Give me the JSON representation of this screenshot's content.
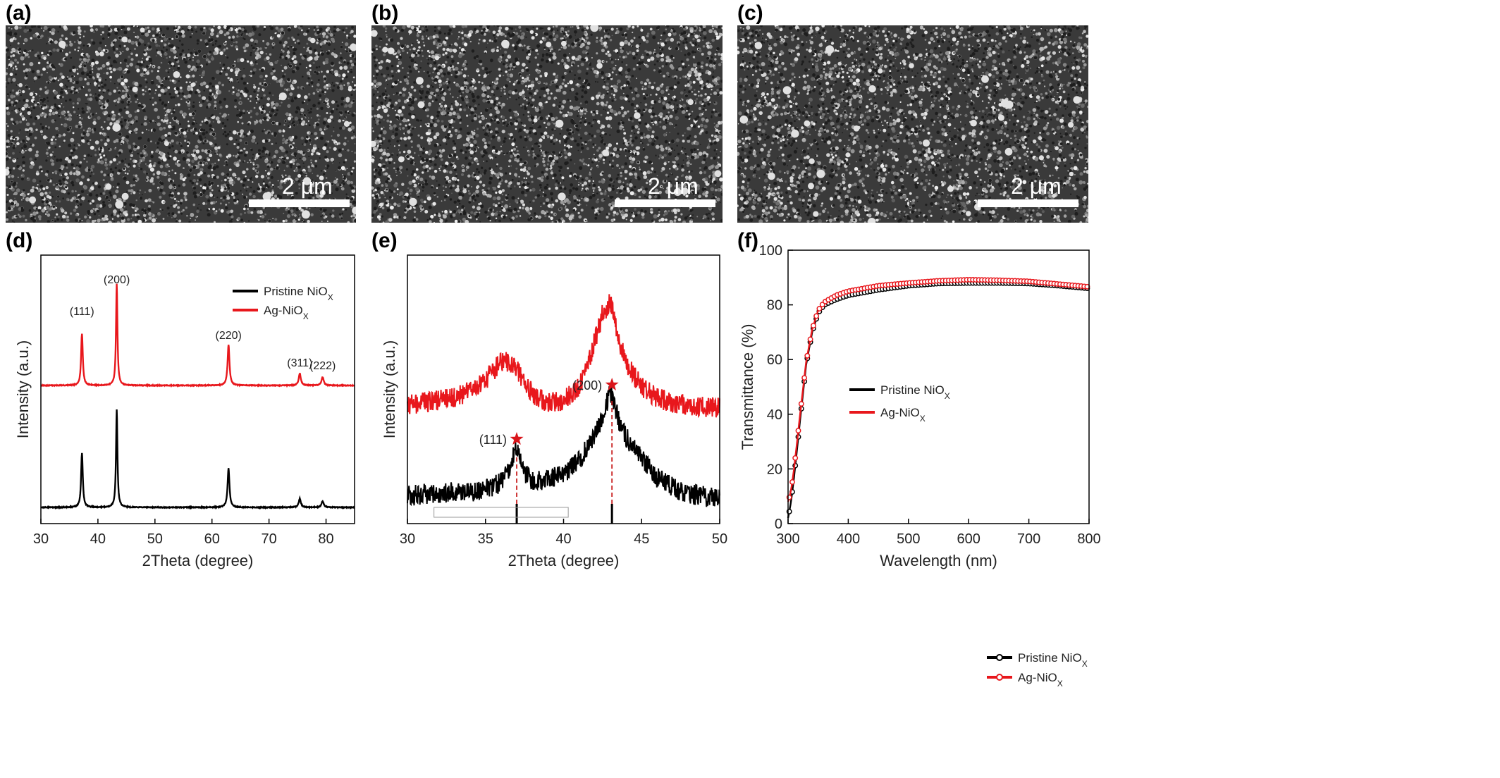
{
  "sem_panels": [
    {
      "label": "(a)",
      "scale_bar": "2 μm"
    },
    {
      "label": "(b)",
      "scale_bar": "2 μm"
    },
    {
      "label": "(c)",
      "scale_bar": "2 μm"
    }
  ],
  "chart_data": [
    {
      "panel": "(d)",
      "type": "line",
      "xlabel": "2Theta (degree)",
      "ylabel": "Intensity (a.u.)",
      "xlim": [
        30,
        85
      ],
      "xticks": [
        30,
        40,
        50,
        60,
        70,
        80
      ],
      "legend": {
        "position": "top-right",
        "entries": [
          "Pristine NiO",
          "Ag-NiO"
        ],
        "subscript": "X"
      },
      "peak_labels": [
        {
          "text": "(111)",
          "x": 37.2
        },
        {
          "text": "(200)",
          "x": 43.3
        },
        {
          "text": "(220)",
          "x": 62.9
        },
        {
          "text": "(311)",
          "x": 75.4
        },
        {
          "text": "(222)",
          "x": 79.4
        }
      ],
      "series": [
        {
          "name": "Pristine NiOX",
          "color": "#000000",
          "baseline": 0.0,
          "peaks": [
            [
              37.2,
              0.43,
              0.35
            ],
            [
              43.3,
              0.78,
              0.3
            ],
            [
              62.9,
              0.31,
              0.4
            ],
            [
              75.4,
              0.07,
              0.45
            ],
            [
              79.4,
              0.05,
              0.45
            ]
          ]
        },
        {
          "name": "Ag-NiOX",
          "color": "#e8171c",
          "baseline": 1.0,
          "peaks": [
            [
              37.2,
              0.43,
              0.35
            ],
            [
              43.3,
              0.85,
              0.3
            ],
            [
              62.9,
              0.34,
              0.4
            ],
            [
              75.4,
              0.1,
              0.45
            ],
            [
              79.4,
              0.07,
              0.45
            ]
          ]
        }
      ]
    },
    {
      "panel": "(e)",
      "type": "line",
      "xlabel": "2Theta (degree)",
      "ylabel": "Intensity (a.u.)",
      "xlim": [
        30,
        50
      ],
      "xticks": [
        30,
        35,
        40,
        45,
        50
      ],
      "legend": {
        "position": "top-right",
        "entries": [
          "Pristine NiO",
          "Ag-NiO"
        ],
        "subscript": "X"
      },
      "peak_labels": [
        {
          "text": "(111)",
          "x": 37.0
        },
        {
          "text": "(200)",
          "x": 43.1
        }
      ],
      "reference_lines": [
        37.0,
        43.1
      ],
      "series": [
        {
          "name": "Pristine NiOX",
          "color": "#000000",
          "x": [
            30,
            31,
            32,
            33,
            34,
            35,
            36,
            36.5,
            37,
            37.5,
            38,
            39,
            40,
            41,
            42,
            42.5,
            43,
            43.5,
            44,
            45,
            46,
            47,
            48,
            49,
            50
          ],
          "y": [
            0.12,
            0.13,
            0.13,
            0.14,
            0.14,
            0.15,
            0.18,
            0.24,
            0.33,
            0.22,
            0.19,
            0.19,
            0.22,
            0.28,
            0.38,
            0.47,
            0.58,
            0.46,
            0.38,
            0.29,
            0.2,
            0.16,
            0.13,
            0.12,
            0.11
          ]
        },
        {
          "name": "Ag-NiOX",
          "color": "#e8171c",
          "x": [
            30,
            31,
            32,
            33,
            34,
            35,
            35.5,
            36,
            36.5,
            37,
            37.5,
            38,
            39,
            40,
            41,
            41.5,
            42,
            42.5,
            43,
            43.5,
            44,
            45,
            46,
            47,
            48,
            49,
            50
          ],
          "y": [
            0.52,
            0.53,
            0.54,
            0.55,
            0.58,
            0.63,
            0.67,
            0.71,
            0.71,
            0.68,
            0.62,
            0.57,
            0.53,
            0.54,
            0.6,
            0.68,
            0.8,
            0.92,
            0.97,
            0.82,
            0.7,
            0.6,
            0.55,
            0.53,
            0.52,
            0.51,
            0.51
          ]
        }
      ]
    },
    {
      "panel": "(f)",
      "type": "line",
      "xlabel": "Wavelength (nm)",
      "ylabel": "Transmittance (%)",
      "xlim": [
        300,
        800
      ],
      "ylim": [
        0,
        100
      ],
      "xticks": [
        300,
        400,
        500,
        600,
        700,
        800
      ],
      "yticks": [
        0,
        20,
        40,
        60,
        80,
        100
      ],
      "legend": {
        "position": "bottom-right",
        "entries": [
          "Pristine NiO",
          "Ag-NiO"
        ],
        "subscript": "X"
      },
      "series": [
        {
          "name": "Pristine NiOX",
          "color": "#000000",
          "x": [
            300,
            305,
            310,
            320,
            330,
            340,
            350,
            360,
            380,
            400,
            450,
            500,
            550,
            600,
            650,
            700,
            750,
            800
          ],
          "y": [
            2,
            8,
            17,
            38,
            58,
            70,
            77,
            80,
            82,
            83.5,
            85.5,
            87,
            87.8,
            88,
            88,
            87.8,
            87,
            86
          ]
        },
        {
          "name": "Ag-NiOX",
          "color": "#e8171c",
          "x": [
            300,
            305,
            310,
            320,
            330,
            340,
            350,
            360,
            380,
            400,
            450,
            500,
            550,
            600,
            650,
            700,
            750,
            800
          ],
          "y": [
            8,
            12,
            20,
            40,
            59,
            71,
            78,
            81,
            83.5,
            85,
            87,
            88,
            88.8,
            89.2,
            89,
            88.6,
            87.6,
            86.6
          ]
        }
      ]
    }
  ]
}
